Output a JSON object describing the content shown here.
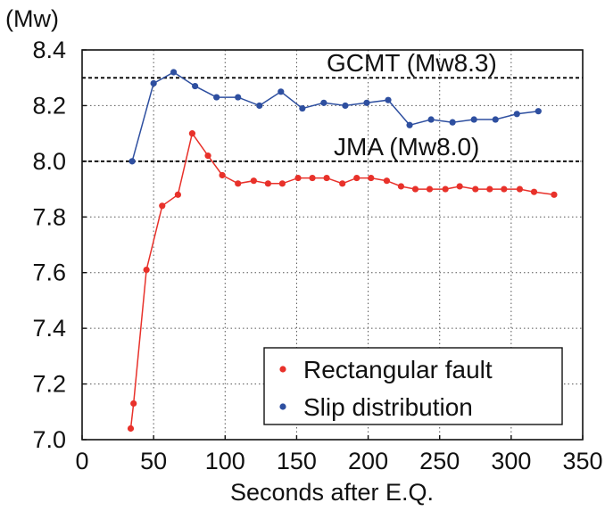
{
  "chart_data": {
    "type": "line",
    "xlabel": "Seconds after E.Q.",
    "ylabel": "(Mw)",
    "xlim": [
      0,
      350
    ],
    "ylim": [
      7.0,
      8.4
    ],
    "x_ticks": [
      "0",
      "50",
      "100",
      "150",
      "200",
      "250",
      "300",
      "350"
    ],
    "y_ticks": [
      "7.0",
      "7.2",
      "7.4",
      "7.6",
      "7.8",
      "8.0",
      "8.2",
      "8.4"
    ],
    "grid": "dotted",
    "reference_lines": [
      {
        "label": "GCMT (Mw8.3)",
        "value": 8.3
      },
      {
        "label": "JMA (Mw8.0)",
        "value": 8.0
      }
    ],
    "legend": {
      "position": "bottom-right"
    },
    "series": [
      {
        "name": "Rectangular fault",
        "color": "#e8312a",
        "x": [
          34,
          36,
          45,
          56,
          67,
          77,
          88,
          98,
          109,
          120,
          130,
          140,
          151,
          161,
          171,
          182,
          192,
          202,
          213,
          223,
          233,
          243,
          254,
          264,
          275,
          285,
          295,
          306,
          316,
          330
        ],
        "y": [
          7.04,
          7.13,
          7.61,
          7.84,
          7.88,
          8.1,
          8.02,
          7.95,
          7.92,
          7.93,
          7.92,
          7.92,
          7.94,
          7.94,
          7.94,
          7.92,
          7.94,
          7.94,
          7.93,
          7.91,
          7.9,
          7.9,
          7.9,
          7.91,
          7.9,
          7.9,
          7.9,
          7.9,
          7.89,
          7.88
        ]
      },
      {
        "name": "Slip distribution",
        "color": "#2e4fa0",
        "x": [
          35,
          50,
          64,
          79,
          94,
          109,
          124,
          139,
          154,
          169,
          184,
          199,
          214,
          229,
          244,
          259,
          274,
          289,
          304,
          319
        ],
        "y": [
          8.0,
          8.28,
          8.32,
          8.27,
          8.23,
          8.23,
          8.2,
          8.25,
          8.19,
          8.21,
          8.2,
          8.21,
          8.22,
          8.13,
          8.15,
          8.14,
          8.15,
          8.15,
          8.17,
          8.18
        ]
      }
    ]
  }
}
